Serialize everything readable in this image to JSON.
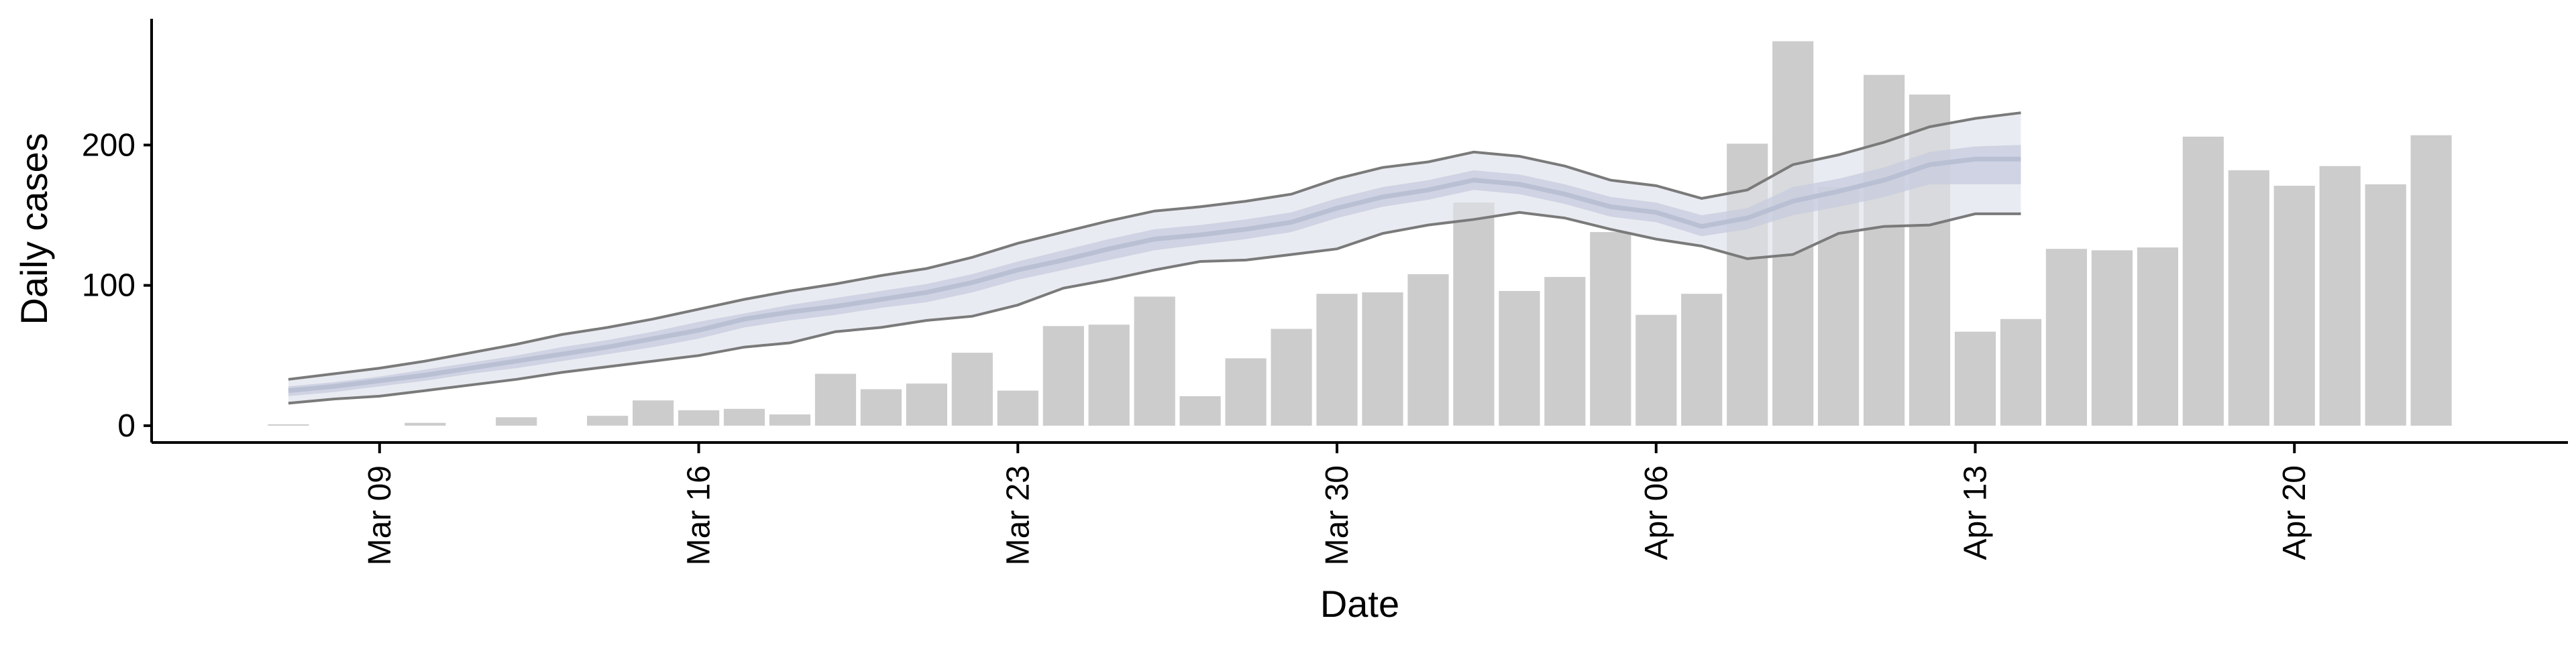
{
  "colors": {
    "bar": "#cccccc",
    "band_outer": "#e8eaf2",
    "band_inner": "#c5cbdd",
    "band_mid": "#b4bccf",
    "bound_line": "#7a7a7a",
    "axis": "#000000"
  },
  "chart_data": {
    "type": "bar",
    "xlabel": "Date",
    "ylabel": "Daily cases",
    "ylim": [
      -12,
      290
    ],
    "xlim": [
      "2020-03-04",
      "2020-04-26"
    ],
    "y_ticks": [
      0,
      100,
      200
    ],
    "y_tick_labels": [
      "0",
      "100",
      "200"
    ],
    "x_ticks": [
      "2020-03-09",
      "2020-03-16",
      "2020-03-23",
      "2020-03-30",
      "2020-04-06",
      "2020-04-13",
      "2020-04-20"
    ],
    "x_tick_labels": [
      "Mar 09",
      "Mar 16",
      "Mar 23",
      "Mar 30",
      "Apr 06",
      "Apr 13",
      "Apr 20"
    ],
    "grid": false,
    "legend": "none",
    "bars": {
      "dates": [
        "2020-03-07",
        "2020-03-08",
        "2020-03-09",
        "2020-03-10",
        "2020-03-11",
        "2020-03-12",
        "2020-03-13",
        "2020-03-14",
        "2020-03-15",
        "2020-03-16",
        "2020-03-17",
        "2020-03-18",
        "2020-03-19",
        "2020-03-20",
        "2020-03-21",
        "2020-03-22",
        "2020-03-23",
        "2020-03-24",
        "2020-03-25",
        "2020-03-26",
        "2020-03-27",
        "2020-03-28",
        "2020-03-29",
        "2020-03-30",
        "2020-03-31",
        "2020-04-01",
        "2020-04-02",
        "2020-04-03",
        "2020-04-04",
        "2020-04-05",
        "2020-04-06",
        "2020-04-07",
        "2020-04-08",
        "2020-04-09",
        "2020-04-10",
        "2020-04-11",
        "2020-04-12",
        "2020-04-13",
        "2020-04-14",
        "2020-04-15",
        "2020-04-16",
        "2020-04-17",
        "2020-04-18",
        "2020-04-19",
        "2020-04-20",
        "2020-04-21",
        "2020-04-22",
        "2020-04-23",
        "2020-04-24"
      ],
      "values": [
        1,
        0,
        0,
        2,
        0,
        6,
        0,
        7,
        18,
        11,
        12,
        8,
        37,
        26,
        30,
        52,
        25,
        71,
        72,
        92,
        21,
        48,
        69,
        94,
        95,
        108,
        159,
        96,
        106,
        138,
        79,
        94,
        201,
        274,
        170,
        250,
        236,
        67,
        76,
        126,
        125,
        127,
        206,
        182,
        171,
        185,
        172,
        207,
        0
      ]
    },
    "estimate": {
      "dates": [
        "2020-03-07",
        "2020-03-08",
        "2020-03-09",
        "2020-03-10",
        "2020-03-11",
        "2020-03-12",
        "2020-03-13",
        "2020-03-14",
        "2020-03-15",
        "2020-03-16",
        "2020-03-17",
        "2020-03-18",
        "2020-03-19",
        "2020-03-20",
        "2020-03-21",
        "2020-03-22",
        "2020-03-23",
        "2020-03-24",
        "2020-03-25",
        "2020-03-26",
        "2020-03-27",
        "2020-03-28",
        "2020-03-29",
        "2020-03-30",
        "2020-03-31",
        "2020-04-01",
        "2020-04-02",
        "2020-04-03",
        "2020-04-04",
        "2020-04-05",
        "2020-04-06",
        "2020-04-07",
        "2020-04-08",
        "2020-04-09",
        "2020-04-10",
        "2020-04-11",
        "2020-04-12",
        "2020-04-13",
        "2020-04-14"
      ],
      "upper": [
        33,
        37,
        41,
        46,
        52,
        58,
        65,
        70,
        76,
        83,
        90,
        96,
        101,
        107,
        112,
        120,
        130,
        138,
        146,
        153,
        156,
        160,
        165,
        176,
        184,
        188,
        195,
        192,
        185,
        175,
        171,
        162,
        168,
        186,
        193,
        202,
        213,
        219,
        223
      ],
      "upper_inner": [
        28,
        31,
        35,
        40,
        45,
        50,
        56,
        61,
        67,
        74,
        80,
        86,
        91,
        96,
        101,
        108,
        117,
        125,
        133,
        140,
        143,
        147,
        152,
        162,
        170,
        175,
        182,
        179,
        172,
        163,
        159,
        150,
        155,
        170,
        176,
        184,
        195,
        199,
        200
      ],
      "median": [
        25,
        28,
        32,
        36,
        41,
        46,
        51,
        56,
        62,
        68,
        76,
        81,
        85,
        90,
        95,
        102,
        111,
        118,
        126,
        133,
        136,
        140,
        145,
        155,
        163,
        168,
        175,
        172,
        165,
        156,
        152,
        142,
        148,
        160,
        167,
        175,
        186,
        190,
        190
      ],
      "lower_inner": [
        21,
        24,
        28,
        32,
        37,
        41,
        46,
        51,
        56,
        62,
        70,
        75,
        79,
        84,
        88,
        95,
        104,
        111,
        118,
        125,
        129,
        133,
        138,
        148,
        156,
        161,
        168,
        165,
        158,
        149,
        145,
        135,
        140,
        150,
        156,
        163,
        172,
        172,
        172
      ],
      "lower": [
        16,
        19,
        21,
        25,
        29,
        33,
        38,
        42,
        46,
        50,
        56,
        59,
        67,
        70,
        75,
        78,
        86,
        98,
        104,
        111,
        117,
        118,
        122,
        126,
        137,
        143,
        147,
        152,
        148,
        140,
        133,
        128,
        119,
        122,
        137,
        142,
        143,
        151,
        151
      ]
    }
  }
}
